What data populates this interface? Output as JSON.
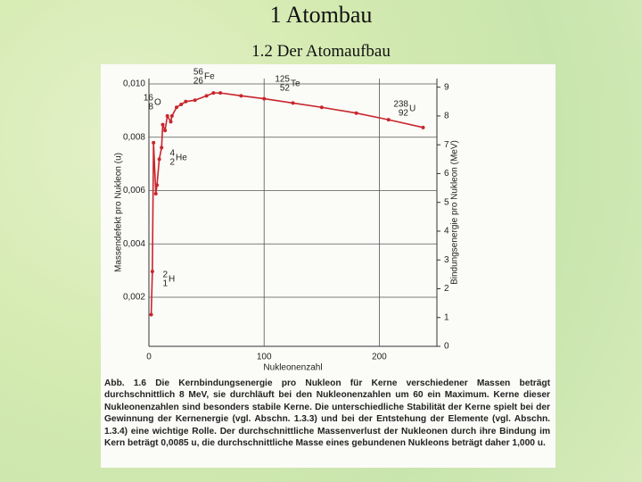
{
  "title": "1 Atombau",
  "subtitle": "1.2 Der Atomaufbau",
  "caption": "Abb. 1.6 Die Kernbindungsenergie pro Nukleon für Kerne verschiedener Massen beträgt durchschnittlich 8 MeV, sie durchläuft bei den Nukleonenzahlen um 60 ein Maximum. Kerne dieser Nukleonenzahlen sind besonders stabile Kerne. Die unterschiedliche Stabilität der Kerne spielt bei der Gewinnung der Kernenergie (vgl. Abschn. 1.3.3) und bei der Entstehung der Elemente (vgl. Abschn. 1.3.4) eine wichtige Rolle. Der durchschnittliche Massenverlust der Nukleonen durch ihre Bindung im Kern beträgt 0,0085 u, die durchschnittliche Masse eines gebundenen Nukleons beträgt daher 1,000 u.",
  "chart_data": {
    "type": "line",
    "x_label": "Nukleonenzahl",
    "y_label": "Massendefekt pro Nukleon (u)",
    "y2_label": "Bindungsenergie pro Nukleon (MeV)",
    "xlim": [
      0,
      250
    ],
    "xticks": [
      0,
      100,
      200
    ],
    "ylim": [
      0.00016,
      0.0102
    ],
    "yticks": [
      {
        "value": 0.002,
        "label": "0,002"
      },
      {
        "value": 0.004,
        "label": "0,004"
      },
      {
        "value": 0.006,
        "label": "0,006"
      },
      {
        "value": 0.008,
        "label": "0,008"
      },
      {
        "value": 0.01,
        "label": "0,010"
      }
    ],
    "y2lim": [
      0,
      9.3
    ],
    "y2ticks": [
      0,
      1,
      2,
      3,
      4,
      5,
      6,
      7,
      8,
      9
    ],
    "grid": true,
    "x": [
      2,
      3,
      4,
      6,
      7,
      9,
      11,
      12,
      14,
      16,
      19,
      20,
      24,
      28,
      32,
      40,
      50,
      56,
      62,
      80,
      100,
      125,
      150,
      180,
      208,
      238
    ],
    "series": [
      {
        "name": "Bindungsenergie",
        "color": "#c8262c",
        "axis": "y2",
        "values": [
          1.1,
          2.6,
          7.07,
          5.3,
          5.6,
          6.5,
          6.9,
          7.7,
          7.5,
          8.0,
          7.8,
          8.0,
          8.3,
          8.4,
          8.5,
          8.55,
          8.7,
          8.8,
          8.8,
          8.7,
          8.6,
          8.45,
          8.3,
          8.1,
          7.87,
          7.6
        ]
      }
    ],
    "annotations": [
      {
        "mass": "2",
        "charge": "1",
        "symbol": "H"
      },
      {
        "mass": "4",
        "charge": "2",
        "symbol": "He"
      },
      {
        "mass": "16",
        "charge": "8",
        "symbol": "O"
      },
      {
        "mass": "56",
        "charge": "26",
        "symbol": "Fe"
      },
      {
        "mass": "125",
        "charge": "52",
        "symbol": "Te"
      },
      {
        "mass": "238",
        "charge": "92",
        "symbol": "U"
      }
    ]
  }
}
